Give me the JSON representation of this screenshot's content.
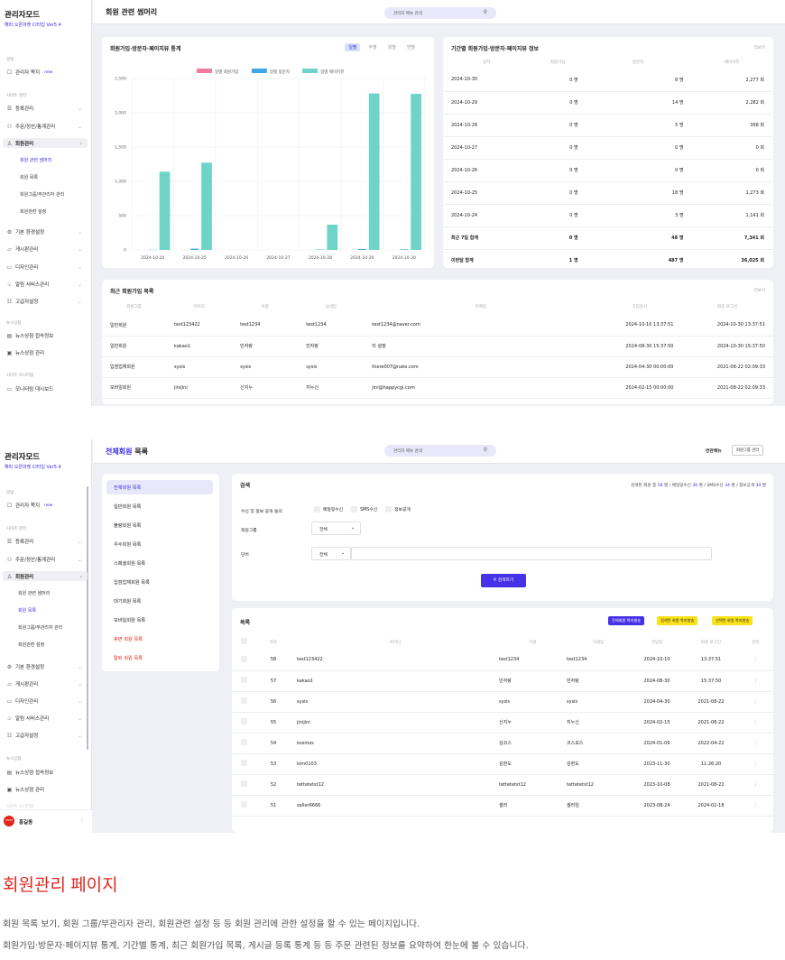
{
  "s1": {
    "sidebar": {
      "brand": "관리자모드",
      "version": "해피 오픈마켓 CI타입 Ver5.4",
      "sec_top": "알림",
      "item_notice": "관리자 쪽지",
      "new": "new",
      "sec_site": "사이트 관리",
      "items": [
        "등록관리",
        "주문/정산/통계관리",
        "회원관리"
      ],
      "subs": [
        "회원 관련 썸머리",
        "회원 목록",
        "회원그룹/부관리자 관리",
        "회원관련 설정"
      ],
      "items2": [
        "기본 환경설정",
        "게시판관리",
        "디자인관리",
        "알림 서비스관리",
        "고급자설정"
      ],
      "sec_news": "뉴스상점",
      "news": [
        "뉴스상점 접속정보",
        "뉴스상점 관리"
      ],
      "sec_mon": "사이트 모니터링",
      "mon": [
        "모니터링 대시보드"
      ]
    },
    "title": "회원 관련 썸머리",
    "search_placeholder": "관리자 메뉴 검색",
    "chart_card": {
      "title": "회원가입·방문자·페이지뷰 통계",
      "tabs": [
        "일별",
        "주별",
        "월별",
        "연별"
      ]
    },
    "period": {
      "title": "기간별 회원가입·방문자·페이지뷰 정보",
      "more": "더보기",
      "headers": [
        "일자",
        "회원가입",
        "방문자",
        "페이지뷰"
      ],
      "rows": [
        [
          "2024-10-30",
          "0 명",
          "8 명",
          "2,277 회"
        ],
        [
          "2024-10-29",
          "0 명",
          "14 명",
          "2,282 회"
        ],
        [
          "2024-10-28",
          "0 명",
          "5 명",
          "368 회"
        ],
        [
          "2024-10-27",
          "0 명",
          "0 명",
          "0 회"
        ],
        [
          "2024-10-26",
          "0 명",
          "0 명",
          "0 회"
        ],
        [
          "2024-10-25",
          "0 명",
          "18 명",
          "1,273 회"
        ],
        [
          "2024-10-24",
          "0 명",
          "3 명",
          "1,141 회"
        ],
        [
          "최근 7일 합계",
          "0 명",
          "48 명",
          "7,341 회"
        ],
        [
          "이번달 합계",
          "1 명",
          "487 명",
          "36,025 회"
        ]
      ]
    },
    "recent": {
      "title": "최근 회원가입 목록",
      "more": "더보기",
      "headers": [
        "회원그룹",
        "아이디",
        "이름",
        "닉네임",
        "이메일",
        "가입일시",
        "최종 로그인"
      ],
      "rows": [
        [
          "일반회원",
          "test123422",
          "test1234",
          "test1234",
          "test1234@naver.com",
          "2024-10-10 13:37:51",
          "2024-10-30 13:37:51"
        ],
        [
          "일반회원",
          "kakao1",
          "민자랑",
          "민자랑",
          "미 설정",
          "2024-08-30 15:37:50",
          "2024-10-30 15:37:50"
        ],
        [
          "입점업체회원",
          "sysis",
          "sysis",
          "sysis",
          "there007@nate.com",
          "2024-04-30 00:00:00",
          "2021-08-22 02:09:33"
        ],
        [
          "모바일회원",
          "jinijini",
          "신지누",
          "지누신",
          "jini@happycgi.com",
          "2024-02-15 00:00:00",
          "2021-08-22 02:09:33"
        ]
      ]
    }
  },
  "chart_data": {
    "type": "bar",
    "title": "",
    "xlabel": "",
    "ylabel": "",
    "categories": [
      "2024-10-24",
      "2024-10-25",
      "2024-10-26",
      "2024-10-27",
      "2024-10-28",
      "2024-10-29",
      "2024-10-30"
    ],
    "series": [
      {
        "name": "일별 회원가입",
        "color": "#f27b9b",
        "values": [
          0,
          0,
          0,
          0,
          0,
          0,
          0
        ]
      },
      {
        "name": "일별 방문자",
        "color": "#3fa7e6",
        "values": [
          3,
          18,
          0,
          0,
          5,
          14,
          8
        ]
      },
      {
        "name": "일별 페이지뷰",
        "color": "#6fd4c8",
        "values": [
          1141,
          1273,
          0,
          0,
          368,
          2282,
          2277
        ]
      }
    ],
    "ylim": [
      0,
      2500
    ],
    "yticks": [
      "0",
      "500",
      "1,000",
      "1,500",
      "2,000",
      "2,500"
    ],
    "grid": true,
    "legend": "top"
  },
  "s2": {
    "title_a": "전체회원",
    "title_b": " 목록",
    "search_placeholder": "관리자 메뉴 검색",
    "related": "연관메뉴",
    "group_btn": "회원그룹 관리",
    "sidebar": {
      "brand": "관리자모드",
      "version": "해피 오픈마켓 CI타입 Ver5.4",
      "sec_top": "알림",
      "item_notice": "관리자 쪽지",
      "new": "new",
      "sec_site": "사이트 관리",
      "items": [
        "등록관리",
        "주문/정산/통계관리",
        "회원관리"
      ],
      "subs": [
        "회원 관련 썸머리",
        "회원 목록",
        "회원그룹/부관리자 관리",
        "회원관련 설정"
      ],
      "items2": [
        "기본 환경설정",
        "게시판관리",
        "디자인관리",
        "알림 서비스관리",
        "고급자설정"
      ],
      "sec_news": "뉴스상점",
      "news": [
        "뉴스상점 접속정보",
        "뉴스상점 관리"
      ],
      "sec_mon": "사이트 모니터링",
      "user": "홍길동",
      "avatar": "HAPPY"
    },
    "submenu": [
      "전체회원 목록",
      "일반회원 목록",
      "불량회원 목록",
      "우수회원 목록",
      "스페셜회원 목록",
      "입점업체회원 목록",
      "대기회원 목록",
      "모바일회원 목록",
      "휴면 회원 목록",
      "탈퇴 회원 목록"
    ],
    "search_box": {
      "title": "검색",
      "summary_a": "검색된 회원 총 ",
      "total": "58",
      "s1": " 명 / 메일링수신 ",
      "mail": "36",
      "s2": " 명 / SMS수신 ",
      "sms": "34",
      "s3": " 명 / 정보공개 ",
      "info": "34",
      "s4": " 명",
      "recv_label": "수신 및 정보 공개 동의",
      "chk": [
        "메일링수신",
        "SMS수신",
        "정보공개"
      ],
      "group_label": "회원그룹",
      "group_sel": "전체",
      "word_label": "단어",
      "word_sel": "전체",
      "search_btn": "검색하기"
    },
    "list": {
      "title": "목록",
      "btns": [
        "전체회원 쪽지발송",
        "검색된 회원 쪽지발송",
        "선택된 회원 쪽지발송"
      ],
      "headers": [
        "번호",
        "아이디",
        "이름",
        "닉네임",
        "가입일",
        "최종 로그인",
        "관리"
      ],
      "rows": [
        [
          "58",
          "test123422",
          "test1234",
          "test1234",
          "2024-10-10",
          "13:37:51"
        ],
        [
          "57",
          "kakao1",
          "민자랑",
          "민자랑",
          "2024-08-30",
          "15:37:50"
        ],
        [
          "56",
          "sysis",
          "sysis",
          "sysis",
          "2024-04-30",
          "2021-08-22"
        ],
        [
          "55",
          "jinijini",
          "신지누",
          "지누신",
          "2024-02-15",
          "2021-08-22"
        ],
        [
          "54",
          "kosmos",
          "김코스",
          "코스모스",
          "2024-01-06",
          "2022-04-22"
        ],
        [
          "53",
          "kim0103",
          "김현도",
          "김현도",
          "2023-11-30",
          "11:26:20"
        ],
        [
          "52",
          "tettetetst12",
          "tettetetst12",
          "tettetetst12",
          "2023-10-08",
          "2021-08-22"
        ],
        [
          "51",
          "seller6666",
          "셀러",
          "셀러임",
          "2023-08-24",
          "2024-02-18"
        ]
      ]
    }
  },
  "footer": {
    "title": "회원관리 페이지",
    "line1": "회원 목록 보기, 회원 그룹/부관리자 관리, 회원관련 설정 등 등 회원 관리에 관한 설정을 할 수 있는 페이지입니다.",
    "line2": "회원가입·방문자·페이지뷰 통계, 기간별 통계, 최근 회원가입 목록, 게시글 등록 통계 등 등 주문 관련된 정보를 요약하여 한눈에 볼 수 있습니다."
  }
}
